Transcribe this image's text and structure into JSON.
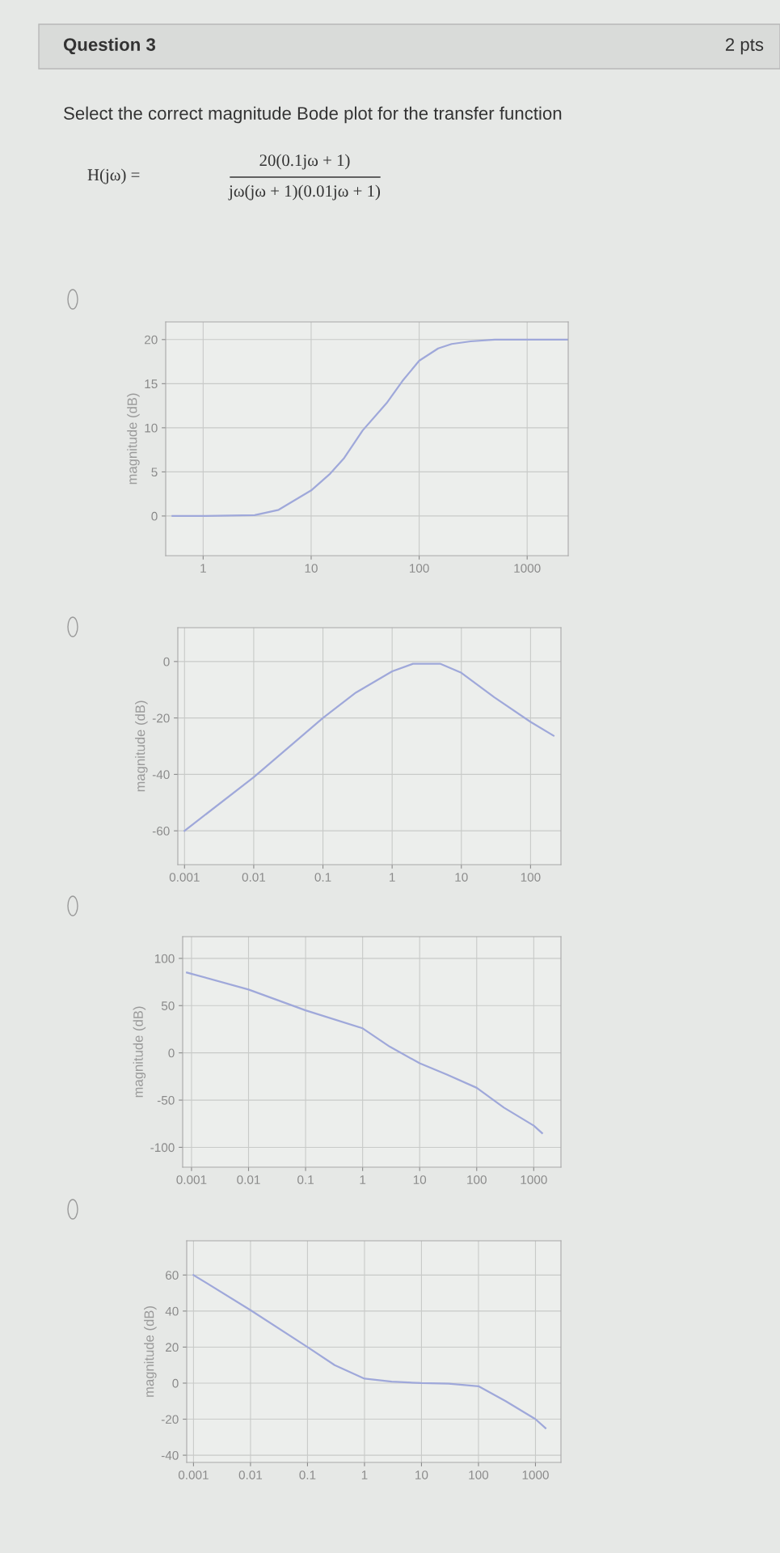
{
  "chart_data": [
    {
      "type": "line",
      "ylabel": "magnitude (dB)",
      "annotations": [
        "Question 3",
        "2 pts",
        "Select the correct magnitude Bode plot for the transfer function",
        "H(jω) =",
        "20(0.1jω + 1)",
        "jω(jω + 1)(0.01jω + 1)"
      ],
      "log": "x",
      "grid": true,
      "xlim": [
        0.45,
        2400
      ],
      "ylim": [
        -4.5,
        22
      ],
      "xticks": [
        1,
        10,
        100,
        1000
      ],
      "yticks": [
        0,
        5,
        10,
        15,
        20
      ],
      "series": [
        {
          "color": "#9fa8da",
          "x": [
            0.52,
            1,
            3,
            5,
            10,
            15,
            20,
            30,
            50,
            70,
            100,
            150,
            200,
            300,
            500,
            2400
          ],
          "values": [
            0,
            0,
            0.1,
            0.7,
            2.9,
            4.8,
            6.5,
            9.7,
            12.8,
            15.3,
            17.6,
            19,
            19.5,
            19.8,
            20,
            20
          ]
        }
      ]
    },
    {
      "type": "line",
      "ylabel": "magnitude (dB)",
      "log": "x",
      "grid": true,
      "xlim": [
        0.0008,
        275
      ],
      "ylim": [
        -72,
        12
      ],
      "xticks": [
        0.001,
        0.01,
        0.1,
        1,
        10,
        100
      ],
      "yticks": [
        -60,
        -40,
        -20,
        0
      ],
      "series": [
        {
          "color": "#9fa8da",
          "x": [
            0.001,
            0.01,
            0.1,
            0.3,
            1,
            2,
            5,
            10,
            30,
            100,
            215
          ],
          "values": [
            -60,
            -41,
            -20,
            -11,
            -3.5,
            -0.8,
            -0.8,
            -4,
            -12.7,
            -21.4,
            -26.3
          ]
        }
      ]
    },
    {
      "type": "line",
      "ylabel": "magnitude (dB)",
      "log": "x",
      "grid": true,
      "xlim": [
        0.0007,
        3000
      ],
      "ylim": [
        -121,
        123
      ],
      "xticks": [
        0.001,
        0.01,
        0.1,
        1,
        10,
        100,
        1000
      ],
      "yticks": [
        -100,
        -50,
        0,
        50,
        100
      ],
      "series": [
        {
          "color": "#9fa8da",
          "x": [
            0.00083,
            0.01,
            0.1,
            1,
            3,
            10,
            30,
            100,
            300,
            1000,
            1400
          ],
          "values": [
            85,
            67,
            45,
            26,
            6.5,
            -11,
            -23,
            -37,
            -58,
            -77,
            -85
          ]
        }
      ]
    },
    {
      "type": "line",
      "ylabel": "magnitude (dB)",
      "log": "x",
      "grid": true,
      "xlim": [
        0.00076,
        2800
      ],
      "ylim": [
        -44,
        79
      ],
      "xticks": [
        0.001,
        0.01,
        0.1,
        1,
        10,
        100,
        1000
      ],
      "yticks": [
        -40,
        -20,
        0,
        20,
        40,
        60
      ],
      "series": [
        {
          "color": "#9fa8da",
          "x": [
            0.001,
            0.01,
            0.1,
            0.3,
            1,
            3,
            10,
            30,
            100,
            300,
            1000,
            1500
          ],
          "values": [
            60,
            40.5,
            20,
            10,
            2.5,
            0.8,
            0,
            -0.3,
            -1.7,
            -10,
            -20,
            -25
          ]
        }
      ]
    }
  ]
}
